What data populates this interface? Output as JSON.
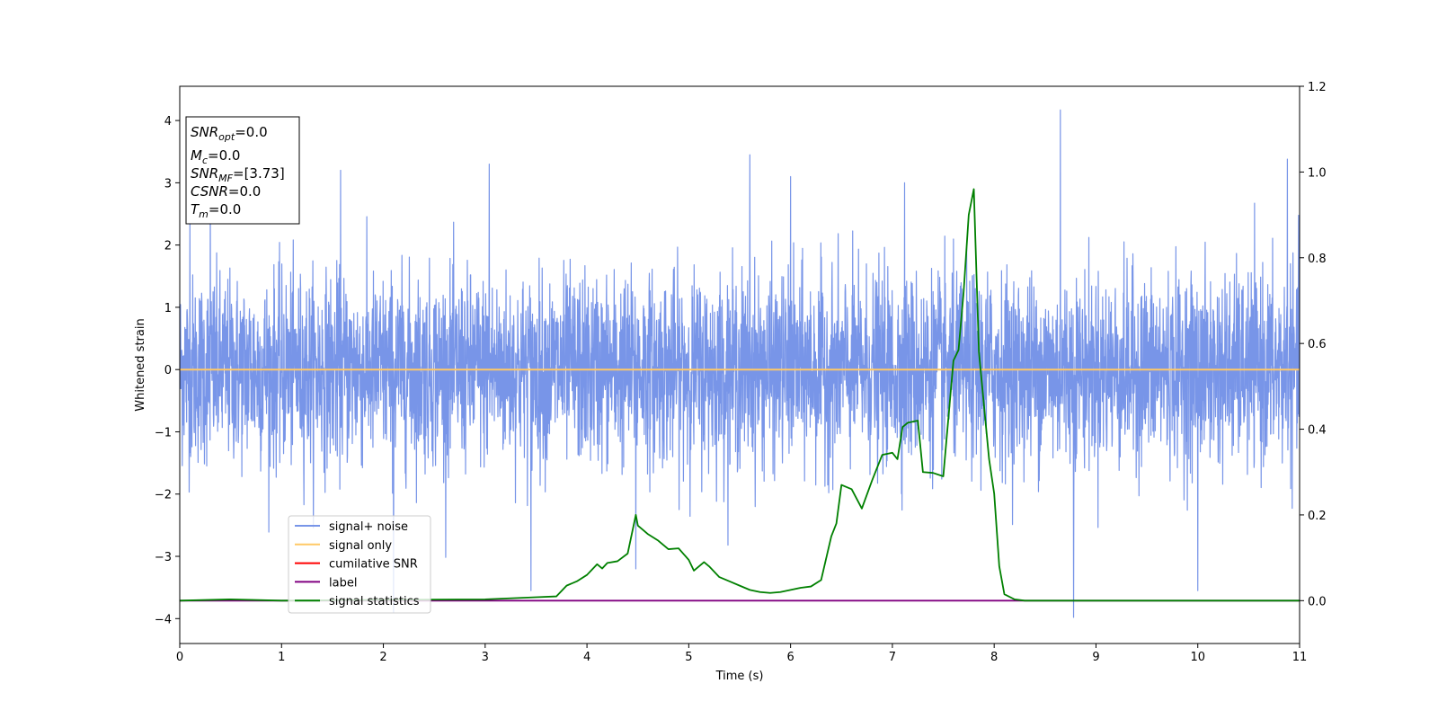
{
  "chart_data": {
    "type": "line",
    "xlabel": "Time (s)",
    "ylabel": "Whitened strain",
    "xlim": [
      0,
      11
    ],
    "ylim_left": [
      -4.4,
      4.55
    ],
    "ylim_right": [
      -0.1,
      1.2
    ],
    "x_ticks": [
      "0",
      "1",
      "2",
      "3",
      "4",
      "5",
      "6",
      "7",
      "8",
      "9",
      "10",
      "11"
    ],
    "y_ticks_left": [
      "4",
      "3",
      "2",
      "1",
      "0",
      "−1",
      "−2",
      "−3",
      "−4"
    ],
    "y_ticks_right": [
      "1.2",
      "1.0",
      "0.8",
      "0.6",
      "0.4",
      "0.2",
      "0.0"
    ],
    "grid": false,
    "legend_position": "lower left",
    "info_box": {
      "snr_opt": {
        "main": "SNR",
        "sub": "opt",
        "value": "=0.0"
      },
      "mc": {
        "main": "M",
        "sub": "c",
        "value": "=0.0"
      },
      "snr_mf": {
        "main": "SNR",
        "sub": "MF",
        "value": "=[3.73]"
      },
      "csnr": {
        "main": "CSNR",
        "value": "=0.0"
      },
      "tm": {
        "main": "T",
        "sub": "m",
        "value": "=0.0"
      }
    },
    "series": [
      {
        "name": "signal+ noise",
        "color": "#7895e8",
        "axis": "left",
        "kind": "noise",
        "std": 0.75,
        "peaks": [
          [
            0.1,
            2.55
          ],
          [
            0.3,
            2.9
          ],
          [
            1.58,
            3.2
          ],
          [
            2.1,
            -3.9
          ],
          [
            3.04,
            3.3
          ],
          [
            3.45,
            -3.55
          ],
          [
            4.48,
            -3.2
          ],
          [
            5.6,
            3.45
          ],
          [
            6.0,
            3.1
          ],
          [
            7.12,
            3.0
          ],
          [
            8.65,
            4.17
          ],
          [
            8.78,
            -3.98
          ],
          [
            10.0,
            -3.55
          ],
          [
            10.88,
            3.38
          ]
        ]
      },
      {
        "name": "signal only",
        "color": "#ffc966",
        "axis": "left",
        "x": [
          0,
          11
        ],
        "y": [
          0,
          0
        ]
      },
      {
        "name": "cumilative SNR",
        "color": "#ff0000",
        "axis": "left",
        "x": [],
        "y": []
      },
      {
        "name": "label",
        "color": "#800080",
        "axis": "right",
        "x": [
          0,
          11
        ],
        "y": [
          0,
          0
        ]
      },
      {
        "name": "signal statistics",
        "color": "#008000",
        "axis": "right",
        "x": [
          0,
          0.5,
          1.0,
          2.0,
          3.0,
          3.5,
          3.7,
          3.8,
          3.9,
          4.0,
          4.1,
          4.15,
          4.2,
          4.3,
          4.4,
          4.48,
          4.5,
          4.55,
          4.6,
          4.7,
          4.8,
          4.9,
          5.0,
          5.05,
          5.15,
          5.2,
          5.3,
          5.4,
          5.5,
          5.6,
          5.7,
          5.8,
          5.9,
          6.0,
          6.1,
          6.2,
          6.3,
          6.4,
          6.45,
          6.5,
          6.6,
          6.7,
          6.8,
          6.9,
          7.0,
          7.05,
          7.1,
          7.15,
          7.25,
          7.3,
          7.4,
          7.5,
          7.6,
          7.65,
          7.7,
          7.75,
          7.8,
          7.85,
          7.95,
          8.0,
          8.05,
          8.1,
          8.2,
          8.3,
          9.0,
          10.0,
          11.0
        ],
        "y": [
          0.0,
          0.003,
          0.0,
          0.002,
          0.003,
          0.008,
          0.01,
          0.035,
          0.045,
          0.06,
          0.085,
          0.075,
          0.088,
          0.092,
          0.11,
          0.2,
          0.175,
          0.165,
          0.155,
          0.14,
          0.12,
          0.122,
          0.095,
          0.07,
          0.09,
          0.08,
          0.055,
          0.045,
          0.035,
          0.025,
          0.02,
          0.018,
          0.02,
          0.025,
          0.03,
          0.033,
          0.048,
          0.15,
          0.18,
          0.27,
          0.26,
          0.215,
          0.28,
          0.34,
          0.345,
          0.33,
          0.405,
          0.415,
          0.42,
          0.3,
          0.298,
          0.29,
          0.56,
          0.585,
          0.72,
          0.9,
          0.96,
          0.58,
          0.33,
          0.25,
          0.08,
          0.015,
          0.003,
          0.0,
          0.0,
          0.0,
          0.0
        ]
      }
    ]
  }
}
